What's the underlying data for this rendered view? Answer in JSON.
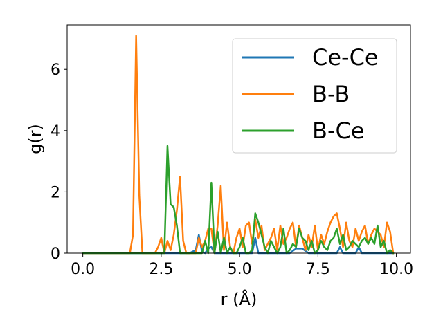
{
  "chart_data": {
    "type": "line",
    "title": "",
    "xlabel": "r (Å)",
    "ylabel": "g(r)",
    "xlim": [
      -0.5,
      10.45
    ],
    "ylim": [
      0,
      7.45
    ],
    "xticks": [
      0.0,
      2.5,
      5.0,
      7.5,
      10.0
    ],
    "xtick_labels": [
      "0.0",
      "2.5",
      "5.0",
      "7.5",
      "10.0"
    ],
    "yticks": [
      0,
      2,
      4,
      6
    ],
    "ytick_labels": [
      "0",
      "2",
      "4",
      "6"
    ],
    "grid": false,
    "legend_position": "top-right",
    "series": [
      {
        "name": "Ce-Ce",
        "color": "#1f77b4",
        "x": [
          0.0,
          3.4,
          3.6,
          3.7,
          3.8,
          3.9,
          4.0,
          4.1,
          4.2,
          5.4,
          5.5,
          5.6,
          6.6,
          6.8,
          7.0,
          7.2,
          7.4,
          8.1,
          8.2,
          8.3,
          8.7,
          8.8,
          8.9,
          9.9
        ],
        "values": [
          0,
          0,
          0.1,
          0.6,
          0.05,
          0.0,
          0.15,
          0.2,
          0.0,
          0.0,
          0.5,
          0.0,
          0.0,
          0.15,
          0.15,
          0.0,
          0.0,
          0.0,
          0.2,
          0.0,
          0.0,
          0.2,
          0.0,
          0.0
        ]
      },
      {
        "name": "B-B",
        "color": "#ff7f0e",
        "x": [
          0.0,
          1.5,
          1.6,
          1.7,
          1.8,
          1.9,
          2.0,
          2.1,
          2.2,
          2.3,
          2.4,
          2.5,
          2.6,
          2.7,
          2.8,
          2.9,
          3.0,
          3.1,
          3.2,
          3.3,
          3.4,
          3.5,
          3.6,
          3.7,
          3.8,
          3.9,
          4.0,
          4.1,
          4.2,
          4.3,
          4.4,
          4.5,
          4.6,
          4.7,
          4.8,
          4.9,
          5.0,
          5.1,
          5.2,
          5.3,
          5.4,
          5.5,
          5.6,
          5.7,
          5.8,
          5.9,
          6.0,
          6.1,
          6.2,
          6.3,
          6.4,
          6.5,
          6.6,
          6.7,
          6.8,
          6.9,
          7.0,
          7.1,
          7.2,
          7.3,
          7.4,
          7.5,
          7.6,
          7.7,
          7.8,
          7.9,
          8.0,
          8.1,
          8.2,
          8.3,
          8.4,
          8.5,
          8.6,
          8.7,
          8.8,
          8.9,
          9.0,
          9.1,
          9.2,
          9.3,
          9.4,
          9.5,
          9.6,
          9.7,
          9.8,
          9.9
        ],
        "values": [
          0,
          0,
          0.6,
          7.1,
          1.9,
          0.0,
          0.0,
          0.0,
          0.0,
          0.0,
          0.2,
          0.5,
          0.0,
          0.4,
          0.1,
          0.6,
          1.4,
          2.5,
          0.4,
          0.0,
          0.0,
          0.0,
          0.0,
          0.5,
          0.2,
          0.4,
          0.8,
          0.8,
          0.0,
          0.9,
          2.2,
          0.1,
          1.0,
          0.2,
          0.0,
          0.5,
          0.8,
          0.2,
          0.9,
          1.0,
          0.3,
          1.1,
          0.5,
          0.9,
          0.1,
          0.3,
          0.5,
          0.8,
          0.1,
          0.9,
          0.3,
          0.5,
          0.8,
          1.0,
          0.2,
          0.9,
          0.5,
          0.1,
          0.6,
          0.2,
          0.9,
          0.1,
          0.6,
          0.3,
          0.7,
          1.0,
          1.2,
          1.3,
          0.8,
          0.2,
          1.0,
          0.4,
          0.2,
          0.8,
          0.4,
          0.7,
          0.9,
          0.3,
          0.6,
          0.8,
          0.7,
          0.6,
          0.2,
          1.0,
          0.7,
          0.0
        ]
      },
      {
        "name": "B-Ce",
        "color": "#2ca02c",
        "x": [
          0.0,
          2.5,
          2.6,
          2.7,
          2.8,
          2.9,
          3.0,
          3.1,
          3.8,
          3.9,
          4.0,
          4.1,
          4.2,
          4.3,
          4.4,
          4.5,
          4.6,
          4.7,
          4.8,
          4.9,
          5.0,
          5.1,
          5.2,
          5.3,
          5.4,
          5.5,
          5.6,
          5.7,
          5.8,
          5.9,
          6.0,
          6.1,
          6.2,
          6.3,
          6.4,
          6.5,
          6.6,
          6.7,
          6.8,
          6.9,
          7.0,
          7.1,
          7.2,
          7.3,
          7.4,
          7.5,
          7.6,
          7.7,
          7.8,
          7.9,
          8.0,
          8.1,
          8.2,
          8.3,
          8.4,
          8.5,
          8.6,
          8.7,
          8.8,
          8.9,
          9.0,
          9.1,
          9.2,
          9.3,
          9.4,
          9.5,
          9.6,
          9.7,
          9.8,
          9.9
        ],
        "values": [
          0,
          0,
          0.0,
          3.5,
          1.6,
          1.5,
          0.9,
          0.0,
          0.0,
          0.4,
          0.0,
          2.3,
          0.0,
          0.7,
          0.0,
          0.5,
          0.0,
          0.2,
          0.0,
          0.0,
          0.2,
          0.5,
          0.0,
          0.0,
          0.1,
          1.3,
          1.0,
          0.6,
          0.2,
          0.0,
          0.4,
          0.2,
          0.0,
          0.2,
          0.8,
          0.0,
          0.1,
          0.3,
          0.2,
          0.8,
          0.5,
          0.4,
          0.1,
          0.4,
          0.0,
          0.1,
          0.4,
          0.2,
          0.1,
          0.4,
          0.5,
          0.8,
          0.3,
          0.6,
          0.1,
          0.2,
          0.4,
          0.3,
          0.2,
          0.4,
          0.5,
          0.3,
          0.5,
          0.3,
          0.9,
          0.2,
          0.4,
          0.0,
          0.1,
          0.0
        ]
      }
    ]
  }
}
